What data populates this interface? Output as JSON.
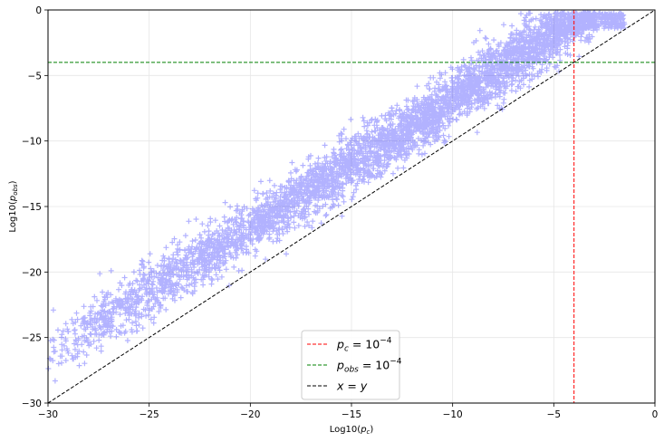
{
  "chart_data": {
    "type": "scatter",
    "title": "",
    "xlabel": "Log10(p_c)",
    "ylabel": "Log10(p_obs)",
    "xlim": [
      -30,
      0
    ],
    "ylim": [
      -30,
      0
    ],
    "xticks": [
      -30,
      -25,
      -20,
      -15,
      -10,
      -5,
      0
    ],
    "yticks": [
      -30,
      -25,
      -20,
      -15,
      -10,
      -5,
      0
    ],
    "grid": true,
    "legend_placement": "lower-center",
    "series": [
      {
        "kind": "scatter",
        "marker": "plus",
        "color": "#0000ff",
        "alpha": 0.3,
        "description_trend": "dense band roughly following y = 0.96x + 4 (approx.), spread about ±1.5, saturating near y≈-1 for x>-10",
        "sample_points": [
          {
            "x": -30,
            "y": -27
          },
          {
            "x": -28,
            "y": -24.5
          },
          {
            "x": -25,
            "y": -21.5
          },
          {
            "x": -22,
            "y": -18.5
          },
          {
            "x": -20,
            "y": -16.5
          },
          {
            "x": -17,
            "y": -13.5
          },
          {
            "x": -15,
            "y": -11
          },
          {
            "x": -12,
            "y": -8
          },
          {
            "x": -10,
            "y": -5.5
          },
          {
            "x": -8,
            "y": -3
          },
          {
            "x": -6,
            "y": -1.5
          },
          {
            "x": -4,
            "y": -1
          },
          {
            "x": -2,
            "y": -0.5
          }
        ]
      }
    ],
    "reference_lines": [
      {
        "orientation": "vertical",
        "value": -4,
        "color": "#ff0000",
        "style": "dashed"
      },
      {
        "orientation": "horizontal",
        "value": -4,
        "color": "#008000",
        "style": "dashed"
      },
      {
        "orientation": "diagonal",
        "from": [
          -30,
          -30
        ],
        "to": [
          0,
          0
        ],
        "color": "#000000",
        "style": "dashed"
      }
    ],
    "legend": [
      {
        "label_main": "p",
        "label_sub": "c",
        "label_rest": " = 10",
        "label_exp": "−4",
        "color": "#ff0000"
      },
      {
        "label_main": "p",
        "label_sub": "obs",
        "label_rest": " = 10",
        "label_exp": "−4",
        "color": "#008000"
      },
      {
        "label_main": "x = y",
        "label_sub": "",
        "label_rest": "",
        "label_exp": "",
        "color": "#000000"
      }
    ]
  }
}
